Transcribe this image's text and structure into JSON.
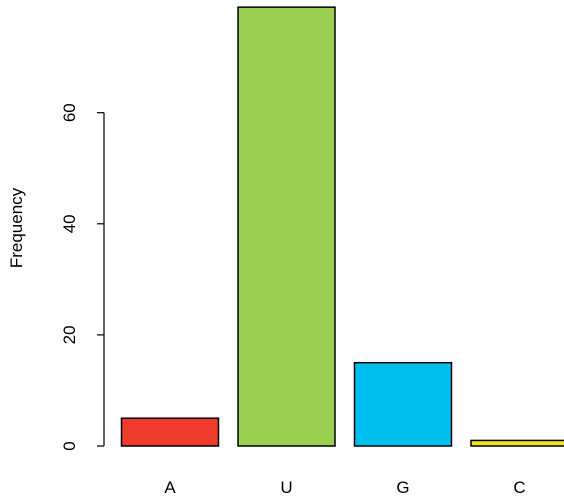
{
  "chart_data": {
    "type": "bar",
    "categories": [
      "A",
      "U",
      "G",
      "C"
    ],
    "values": [
      5,
      79,
      15,
      1
    ],
    "colors": [
      "#ef3b2c",
      "#9ccf51",
      "#00bfef",
      "#f2e41a"
    ],
    "ylabel": "Frequency",
    "xlabel": "",
    "title": "",
    "ylim": [
      0,
      79
    ],
    "yticks": [
      0,
      20,
      40,
      60
    ],
    "grid": false,
    "legend": "none"
  }
}
